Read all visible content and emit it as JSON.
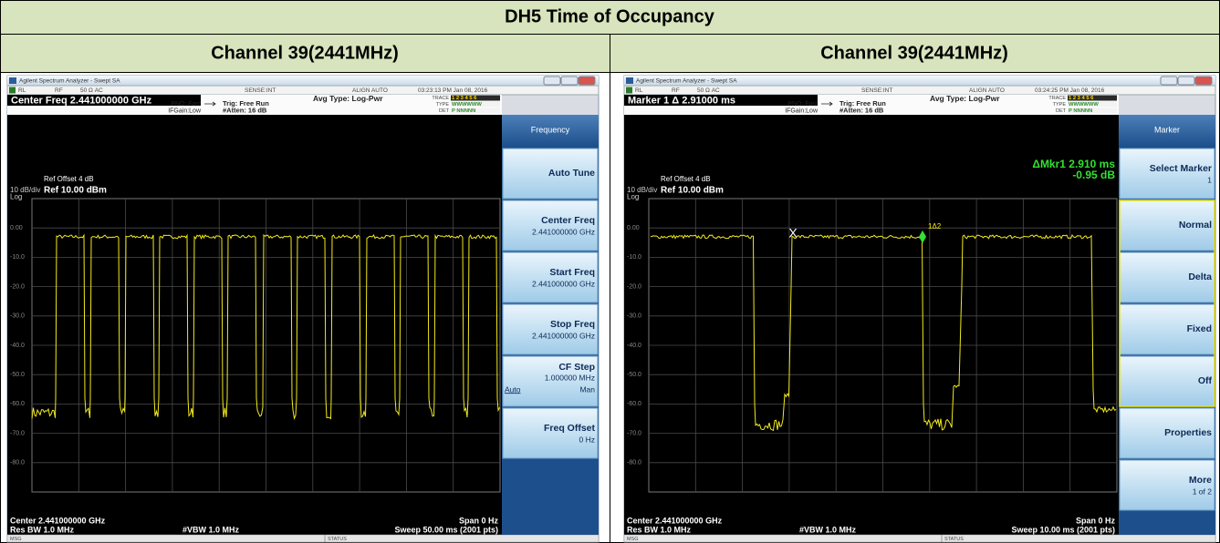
{
  "title": "DH5 Time of Occupancy",
  "panels": [
    {
      "header": "Channel 39(2441MHz)",
      "window_title": "Agilent Spectrum Analyzer - Swept SA",
      "status": [
        "RL",
        "RF",
        "50 Ω  AC",
        "SENSE:INT",
        "ALIGN AUTO",
        "03:23:13 PM Jan 08, 2016"
      ],
      "active_function": "Center Freq 2.441000000 GHz",
      "pno": "PNO: Fast",
      "ifgain": "IFGain:Low",
      "trig": "Trig: Free Run",
      "atten": "#Atten: 16 dB",
      "avg_type": "Avg Type: Log-Pwr",
      "trace_labels": [
        "TRACE",
        "TYPE",
        "DET"
      ],
      "trace_rows": [
        "1 2 3 4 5 6",
        "WWWWWW",
        "P NNNNN"
      ],
      "ref_offset": "Ref Offset 4 dB",
      "scale": "10 dB/div",
      "ref_level": "Ref 10.00 dBm",
      "scale_type": "Log",
      "y_labels": [
        "0.00",
        "-10.0",
        "-20.0",
        "-30.0",
        "-40.0",
        "-50.0",
        "-60.0",
        "-70.0",
        "-80.0"
      ],
      "center": "Center 2.441000000 GHz",
      "span": "Span 0 Hz",
      "res_bw": "Res BW 1.0 MHz",
      "vbw": "#VBW 1.0 MHz",
      "sweep": "Sweep  50.00 ms (2001 pts)",
      "msg": "MSG",
      "status_bar": "STATUS",
      "menu_title": "Frequency",
      "softkeys": [
        {
          "label": "Auto Tune"
        },
        {
          "label": "Center Freq",
          "value": "2.441000000 GHz"
        },
        {
          "label": "Start Freq",
          "value": "2.441000000 GHz"
        },
        {
          "label": "Stop Freq",
          "value": "2.441000000 GHz"
        },
        {
          "label": "CF Step",
          "value": "1.000000 MHz",
          "options": [
            "Auto",
            "Man"
          ]
        },
        {
          "label": "Freq Offset",
          "value": "0 Hz"
        }
      ]
    },
    {
      "header": "Channel 39(2441MHz)",
      "window_title": "Agilent Spectrum Analyzer - Swept SA",
      "status": [
        "RL",
        "RF",
        "50 Ω  AC",
        "SENSE:INT",
        "ALIGN AUTO",
        "03:24:25 PM Jan 08, 2016"
      ],
      "active_function": "Marker 1 Δ 2.91000 ms",
      "pno": "PNO: Fast",
      "ifgain": "IFGain:Low",
      "trig": "Trig: Free Run",
      "atten": "#Atten: 16 dB",
      "avg_type": "Avg Type: Log-Pwr",
      "trace_labels": [
        "TRACE",
        "TYPE",
        "DET"
      ],
      "trace_rows": [
        "1 2 3 4 5 6",
        "WWWWWW",
        "P NNNNN"
      ],
      "ref_offset": "Ref Offset 4 dB",
      "scale": "10 dB/div",
      "ref_level": "Ref 10.00 dBm",
      "scale_type": "Log",
      "marker_readout": [
        "ΔMkr1 2.910 ms",
        "-0.95 dB"
      ],
      "marker_labels": [
        "X",
        "1Δ2"
      ],
      "y_labels": [
        "0.00",
        "-10.0",
        "-20.0",
        "-30.0",
        "-40.0",
        "-50.0",
        "-60.0",
        "-70.0",
        "-80.0"
      ],
      "center": "Center 2.441000000 GHz",
      "span": "Span 0 Hz",
      "res_bw": "Res BW 1.0 MHz",
      "vbw": "#VBW 1.0 MHz",
      "sweep": "Sweep  10.00 ms (2001 pts)",
      "msg": "MSG",
      "status_bar": "STATUS",
      "menu_title": "Marker",
      "softkeys": [
        {
          "label": "Select Marker",
          "value": "1"
        },
        {
          "label": "Normal"
        },
        {
          "label": "Delta"
        },
        {
          "label": "Fixed"
        },
        {
          "label": "Off"
        },
        {
          "label": "Properties"
        },
        {
          "label": "More",
          "value": "1 of 2"
        }
      ]
    }
  ]
}
